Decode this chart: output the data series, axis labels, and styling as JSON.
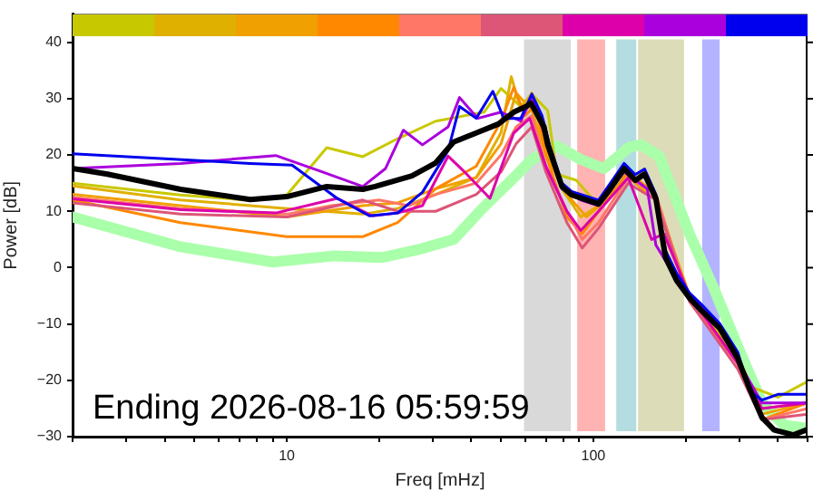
{
  "chart_data": {
    "type": "line",
    "xlabel": "Freq [mHz]",
    "ylabel": "Power [dB]",
    "log": "x",
    "grid": false,
    "legend": false,
    "marker": "none",
    "line_style": "solid",
    "xlim": [
      2,
      500
    ],
    "ylim": [
      -30,
      45
    ],
    "xticks": [
      {
        "value": 2,
        "label": null
      },
      {
        "value": 3,
        "label": null
      },
      {
        "value": 4,
        "label": null
      },
      {
        "value": 5,
        "label": null
      },
      {
        "value": 6,
        "label": null
      },
      {
        "value": 7,
        "label": null
      },
      {
        "value": 8,
        "label": null
      },
      {
        "value": 9,
        "label": null
      },
      10,
      {
        "value": 20,
        "label": null
      },
      {
        "value": 30,
        "label": null
      },
      {
        "value": 40,
        "label": null
      },
      {
        "value": 50,
        "label": null
      },
      {
        "value": 60,
        "label": null
      },
      {
        "value": 70,
        "label": null
      },
      {
        "value": 80,
        "label": null
      },
      {
        "value": 90,
        "label": null
      },
      100,
      {
        "value": 200,
        "label": null
      },
      {
        "value": 300,
        "label": null
      },
      {
        "value": 400,
        "label": null
      },
      {
        "value": 500,
        "label": null
      }
    ],
    "yticks": [
      -30,
      -20,
      -10,
      0,
      10,
      20,
      30,
      40
    ],
    "annotations": [
      "Ending 2026-08-16 05:59:59"
    ],
    "bands": [
      {
        "axis": "x",
        "from": 59,
        "to": 85,
        "color": "#d9d9d9"
      },
      {
        "axis": "x",
        "from": 88,
        "to": 110,
        "color": "#ffb3b3"
      },
      {
        "axis": "x",
        "from": 118,
        "to": 139,
        "color": "#b3dde0"
      },
      {
        "axis": "x",
        "from": 139,
        "to": 199,
        "color": "#dcdcb8"
      },
      {
        "axis": "x",
        "from": 225,
        "to": 260,
        "color": "#b3b3ff"
      }
    ],
    "series": [
      {
        "color": "#aaffaa",
        "x": [
          2,
          4.5,
          9,
          14.3,
          20.5,
          27.7,
          35,
          44,
          54,
          63,
          76,
          91,
          108,
          131,
          143,
          164,
          206,
          246,
          296,
          355,
          420,
          500
        ],
        "values": [
          9,
          3.7,
          1,
          2.1,
          1.8,
          3.4,
          5,
          10.8,
          15.5,
          19.2,
          21.6,
          19.2,
          17.6,
          21.4,
          21.8,
          19.8,
          6,
          -3.4,
          -14,
          -24,
          -28,
          -28.5
        ]
      },
      {
        "color": "#c8c800",
        "x": [
          2,
          4.5,
          7.8,
          10,
          13.5,
          17.7,
          23,
          30.6,
          44,
          50,
          58,
          63,
          71,
          76,
          88,
          104,
          120,
          147,
          165,
          206,
          296,
          322,
          400,
          500
        ],
        "values": [
          15,
          12.9,
          11.9,
          12.9,
          21.3,
          19.7,
          22.9,
          26,
          27.6,
          31.8,
          28.6,
          30.8,
          27.9,
          16.6,
          15.5,
          11,
          16,
          17,
          10,
          -5,
          -16,
          -21,
          -23,
          -20.2
        ]
      },
      {
        "color": "#e0b000",
        "x": [
          2,
          4.5,
          10,
          17.7,
          23,
          30.6,
          41.5,
          50,
          54,
          58,
          63,
          69,
          79,
          91,
          104,
          120,
          147,
          165,
          206,
          296,
          355,
          500
        ],
        "values": [
          14.5,
          12,
          10.5,
          9.5,
          10.5,
          13,
          16,
          24,
          33.9,
          28,
          31,
          22,
          14,
          9,
          11,
          16,
          17,
          10,
          -6,
          -16,
          -25,
          -24
        ]
      },
      {
        "color": "#f0a000",
        "x": [
          2,
          4.5,
          10,
          17.7,
          23,
          30.6,
          41.5,
          50,
          56,
          63,
          70,
          82,
          95,
          110,
          130,
          160,
          206,
          296,
          355,
          500
        ],
        "values": [
          13,
          11,
          9,
          11,
          11.5,
          14,
          16,
          22,
          31,
          28,
          20,
          13,
          9,
          12,
          16,
          12,
          -5,
          -17,
          -26,
          -24
        ]
      },
      {
        "color": "#ff8800",
        "x": [
          2,
          4.5,
          10,
          17.7,
          23,
          30.6,
          41.5,
          50,
          55,
          60,
          65,
          70,
          82,
          92,
          104,
          130,
          160,
          206,
          296,
          355,
          500
        ],
        "values": [
          12,
          8,
          5.5,
          5.5,
          8,
          14,
          18,
          26,
          32,
          27,
          29,
          20,
          9,
          6,
          10,
          17,
          13,
          -6,
          -17,
          -27,
          -24
        ]
      },
      {
        "color": "#ff7766",
        "x": [
          2,
          4.5,
          10,
          14,
          20,
          25,
          30.6,
          41.5,
          50,
          56,
          63,
          70,
          82,
          92,
          104,
          130,
          160,
          206,
          296,
          355,
          500
        ],
        "values": [
          12.5,
          10.5,
          9.5,
          11,
          12,
          11,
          13,
          15,
          20,
          25,
          27,
          18,
          10,
          5,
          8,
          16,
          13,
          -6,
          -17,
          -27,
          -25
        ]
      },
      {
        "color": "#dd5577",
        "x": [
          2,
          4.5,
          10,
          17.7,
          23,
          30.6,
          41.5,
          50,
          56,
          63,
          70,
          82,
          92,
          104,
          130,
          160,
          206,
          296,
          355,
          500
        ],
        "values": [
          11.5,
          9.5,
          9,
          12,
          10,
          10,
          13,
          17,
          22,
          25,
          17,
          8,
          3.5,
          7,
          15,
          12,
          -6,
          -18,
          -27,
          -26
        ]
      },
      {
        "color": "#dd00aa",
        "x": [
          2,
          4.5,
          9.2,
          14.6,
          19,
          23,
          27.7,
          33.6,
          38,
          46,
          55,
          62,
          70,
          82,
          91,
          104,
          130,
          155,
          170,
          206,
          296,
          355,
          500
        ],
        "values": [
          12.2,
          10.3,
          9.7,
          12.3,
          9.2,
          9.7,
          11,
          19.8,
          17,
          12.3,
          23.9,
          26.5,
          18,
          10,
          6.6,
          10,
          16,
          5,
          6,
          -5,
          -17,
          -25,
          -24
        ]
      },
      {
        "color": "#aa00dd",
        "x": [
          2,
          4.5,
          9.2,
          12.9,
          17.7,
          21,
          24,
          27.7,
          33.6,
          36.6,
          42,
          50,
          58,
          63,
          69,
          79,
          91,
          104,
          126,
          150,
          160,
          187,
          259,
          355,
          500
        ],
        "values": [
          17.6,
          18.5,
          19.9,
          17.1,
          14.4,
          17.6,
          24.4,
          21.8,
          25,
          30.2,
          26.5,
          27.6,
          26,
          30.2,
          24,
          14,
          12,
          11,
          17,
          14,
          4,
          -2,
          -11,
          -24,
          -24
        ]
      },
      {
        "color": "#0000ee",
        "x": [
          2,
          7.6,
          10.4,
          14.6,
          18.6,
          23,
          27.7,
          33.6,
          36.6,
          41.5,
          47,
          51,
          58,
          63,
          68,
          72,
          79,
          85,
          104,
          112,
          126,
          137,
          147,
          160,
          172,
          187,
          206,
          225,
          259,
          296,
          322,
          355,
          400,
          500
        ],
        "values": [
          20.2,
          18.5,
          18.2,
          12.3,
          9.2,
          9.7,
          13.4,
          20.8,
          28.6,
          26.5,
          31.3,
          26.5,
          26.5,
          30.8,
          27,
          21.8,
          15,
          13.5,
          12,
          14.5,
          18.5,
          16.5,
          17.5,
          13,
          3,
          -1,
          -4.5,
          -6.5,
          -10,
          -15,
          -21.8,
          -23.5,
          -22.5,
          -22.5
        ]
      },
      {
        "color": "#000000",
        "x": [
          2,
          2.6,
          4.5,
          7.6,
          10,
          13.5,
          17.7,
          19.4,
          25.6,
          30.6,
          35,
          41.5,
          49,
          55,
          60.4,
          62.5,
          65,
          69,
          71,
          79,
          85,
          104,
          112,
          126,
          137,
          147,
          160,
          172,
          187,
          206,
          225,
          259,
          296,
          322,
          355,
          389,
          450,
          500
        ],
        "values": [
          17.6,
          16.6,
          13.9,
          12.1,
          12.6,
          14.4,
          13.9,
          14.4,
          16.3,
          18.6,
          22.3,
          23.9,
          25.5,
          27.6,
          28.6,
          29.2,
          27.6,
          25,
          21.8,
          14.4,
          12.9,
          11.3,
          13.5,
          17.6,
          15.5,
          16.6,
          12.3,
          1.8,
          -2.3,
          -5.4,
          -7.6,
          -10.8,
          -16.1,
          -21.2,
          -26.6,
          -28.8,
          -29.7,
          -28.7
        ]
      }
    ]
  }
}
